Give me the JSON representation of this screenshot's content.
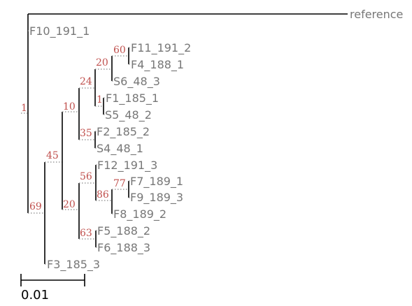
{
  "tree": {
    "leaves": [
      {
        "id": "reference",
        "label": "reference"
      },
      {
        "id": "f10-191-1",
        "label": "F10_191_1"
      },
      {
        "id": "f11-191-2",
        "label": "F11_191_2"
      },
      {
        "id": "f4-188-1",
        "label": "F4_188_1"
      },
      {
        "id": "s6-48-3",
        "label": "S6_48_3"
      },
      {
        "id": "f1-185-1",
        "label": "F1_185_1"
      },
      {
        "id": "s5-48-2",
        "label": "S5_48_2"
      },
      {
        "id": "f2-185-2",
        "label": "F2_185_2"
      },
      {
        "id": "s4-48-1",
        "label": "S4_48_1"
      },
      {
        "id": "f12-191-3",
        "label": "F12_191_3"
      },
      {
        "id": "f7-189-1",
        "label": "F7_189_1"
      },
      {
        "id": "f9-189-3",
        "label": "F9_189_3"
      },
      {
        "id": "f8-189-2",
        "label": "F8_189_2"
      },
      {
        "id": "f5-188-2",
        "label": "F5_188_2"
      },
      {
        "id": "f6-188-3",
        "label": "F6_188_3"
      },
      {
        "id": "f3-185-3",
        "label": "F3_185_3"
      }
    ],
    "support_values": [
      {
        "id": "root",
        "value": "1"
      },
      {
        "id": "n69",
        "value": "69"
      },
      {
        "id": "n45",
        "value": "45"
      },
      {
        "id": "n10",
        "value": "10"
      },
      {
        "id": "n24",
        "value": "24"
      },
      {
        "id": "n20a",
        "value": "20"
      },
      {
        "id": "n60",
        "value": "60"
      },
      {
        "id": "n1",
        "value": "1"
      },
      {
        "id": "n35",
        "value": "35"
      },
      {
        "id": "n20b",
        "value": "20"
      },
      {
        "id": "n56",
        "value": "56"
      },
      {
        "id": "n86",
        "value": "86"
      },
      {
        "id": "n77",
        "value": "77"
      },
      {
        "id": "n63",
        "value": "63"
      }
    ]
  },
  "scale_bar": {
    "label": "0.01"
  }
}
